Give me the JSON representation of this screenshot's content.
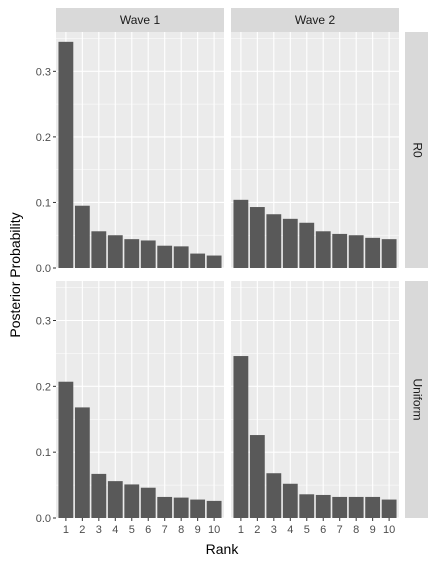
{
  "chart_data": {
    "type": "bar",
    "xlabel": "Rank",
    "ylabel": "Posterior Probability",
    "ylim": [
      0,
      0.36
    ],
    "yticks": [
      0.0,
      0.1,
      0.2,
      0.3
    ],
    "ytick_labels": [
      "0.0",
      "0.1",
      "0.2",
      "0.3"
    ],
    "categories": [
      "1",
      "2",
      "3",
      "4",
      "5",
      "6",
      "7",
      "8",
      "9",
      "10"
    ],
    "facet_columns": [
      "Wave 1",
      "Wave 2"
    ],
    "facet_rows": [
      "R0",
      "Uniform"
    ],
    "grid": true,
    "colors": {
      "bar": "#595959",
      "panel_bg": "#ebebeb",
      "strip_bg": "#d9d9d9",
      "grid_major": "#ffffff"
    },
    "panels": [
      {
        "row": "R0",
        "column": "Wave 1",
        "values": [
          0.345,
          0.095,
          0.056,
          0.05,
          0.044,
          0.042,
          0.034,
          0.033,
          0.022,
          0.019
        ]
      },
      {
        "row": "R0",
        "column": "Wave 2",
        "values": [
          0.104,
          0.093,
          0.082,
          0.075,
          0.069,
          0.056,
          0.052,
          0.05,
          0.046,
          0.044
        ]
      },
      {
        "row": "Uniform",
        "column": "Wave 1",
        "values": [
          0.207,
          0.168,
          0.067,
          0.056,
          0.051,
          0.046,
          0.032,
          0.031,
          0.028,
          0.026
        ]
      },
      {
        "row": "Uniform",
        "column": "Wave 2",
        "values": [
          0.246,
          0.126,
          0.068,
          0.052,
          0.036,
          0.035,
          0.032,
          0.032,
          0.032,
          0.028
        ]
      }
    ]
  }
}
